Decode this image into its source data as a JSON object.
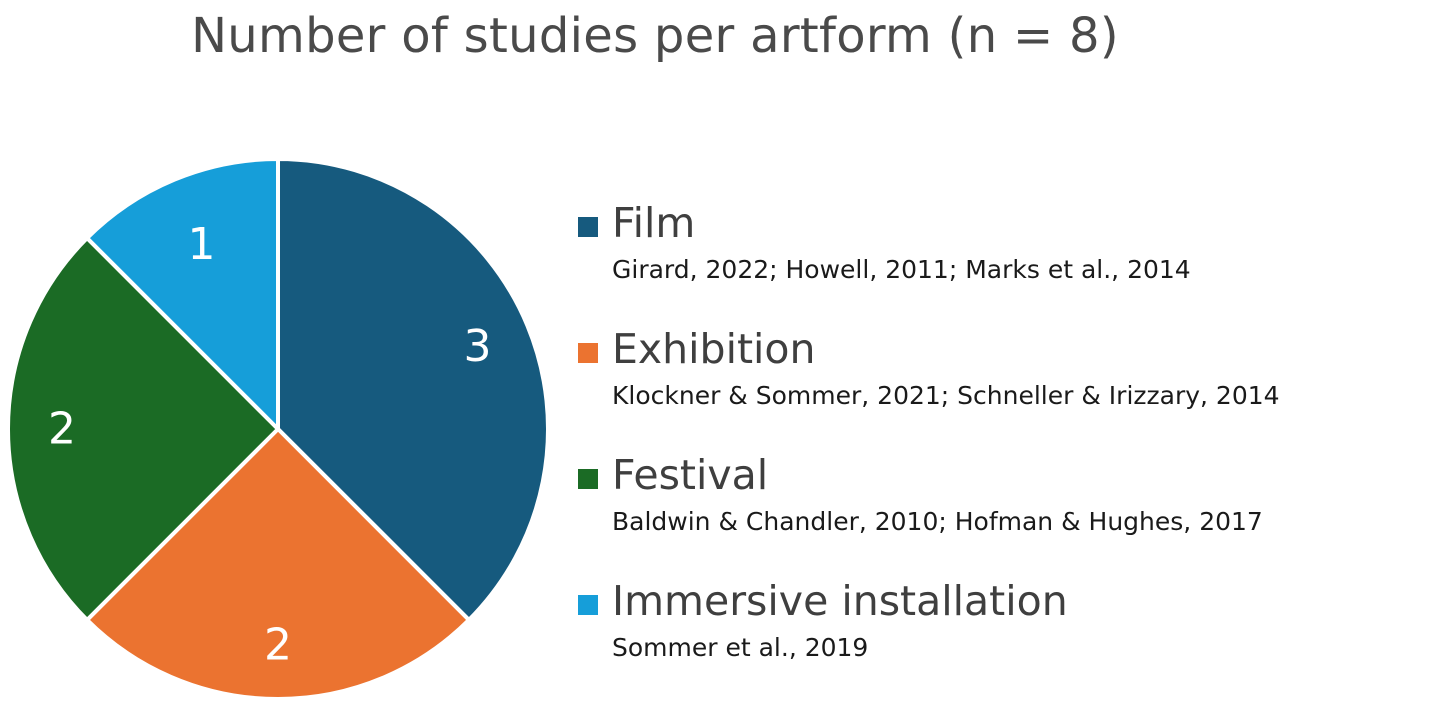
{
  "chart_data": {
    "type": "pie",
    "title": "Number of studies per artform (n = 8)",
    "legend_position": "right",
    "slices": [
      {
        "name": "Film",
        "value": 3,
        "color": "#165a7e",
        "references": "Girard, 2022; Howell, 2011; Marks et al., 2014"
      },
      {
        "name": "Exhibition",
        "value": 2,
        "color": "#eb7330",
        "references": "Klockner & Sommer, 2021; Schneller & Irizzary, 2014"
      },
      {
        "name": "Festival",
        "value": 2,
        "color": "#1b6b25",
        "references": "Baldwin & Chandler, 2010; Hofman & Hughes, 2017"
      },
      {
        "name": "Immersive installation",
        "value": 1,
        "color": "#169ed9",
        "references": "Sommer et al., 2019"
      }
    ]
  }
}
